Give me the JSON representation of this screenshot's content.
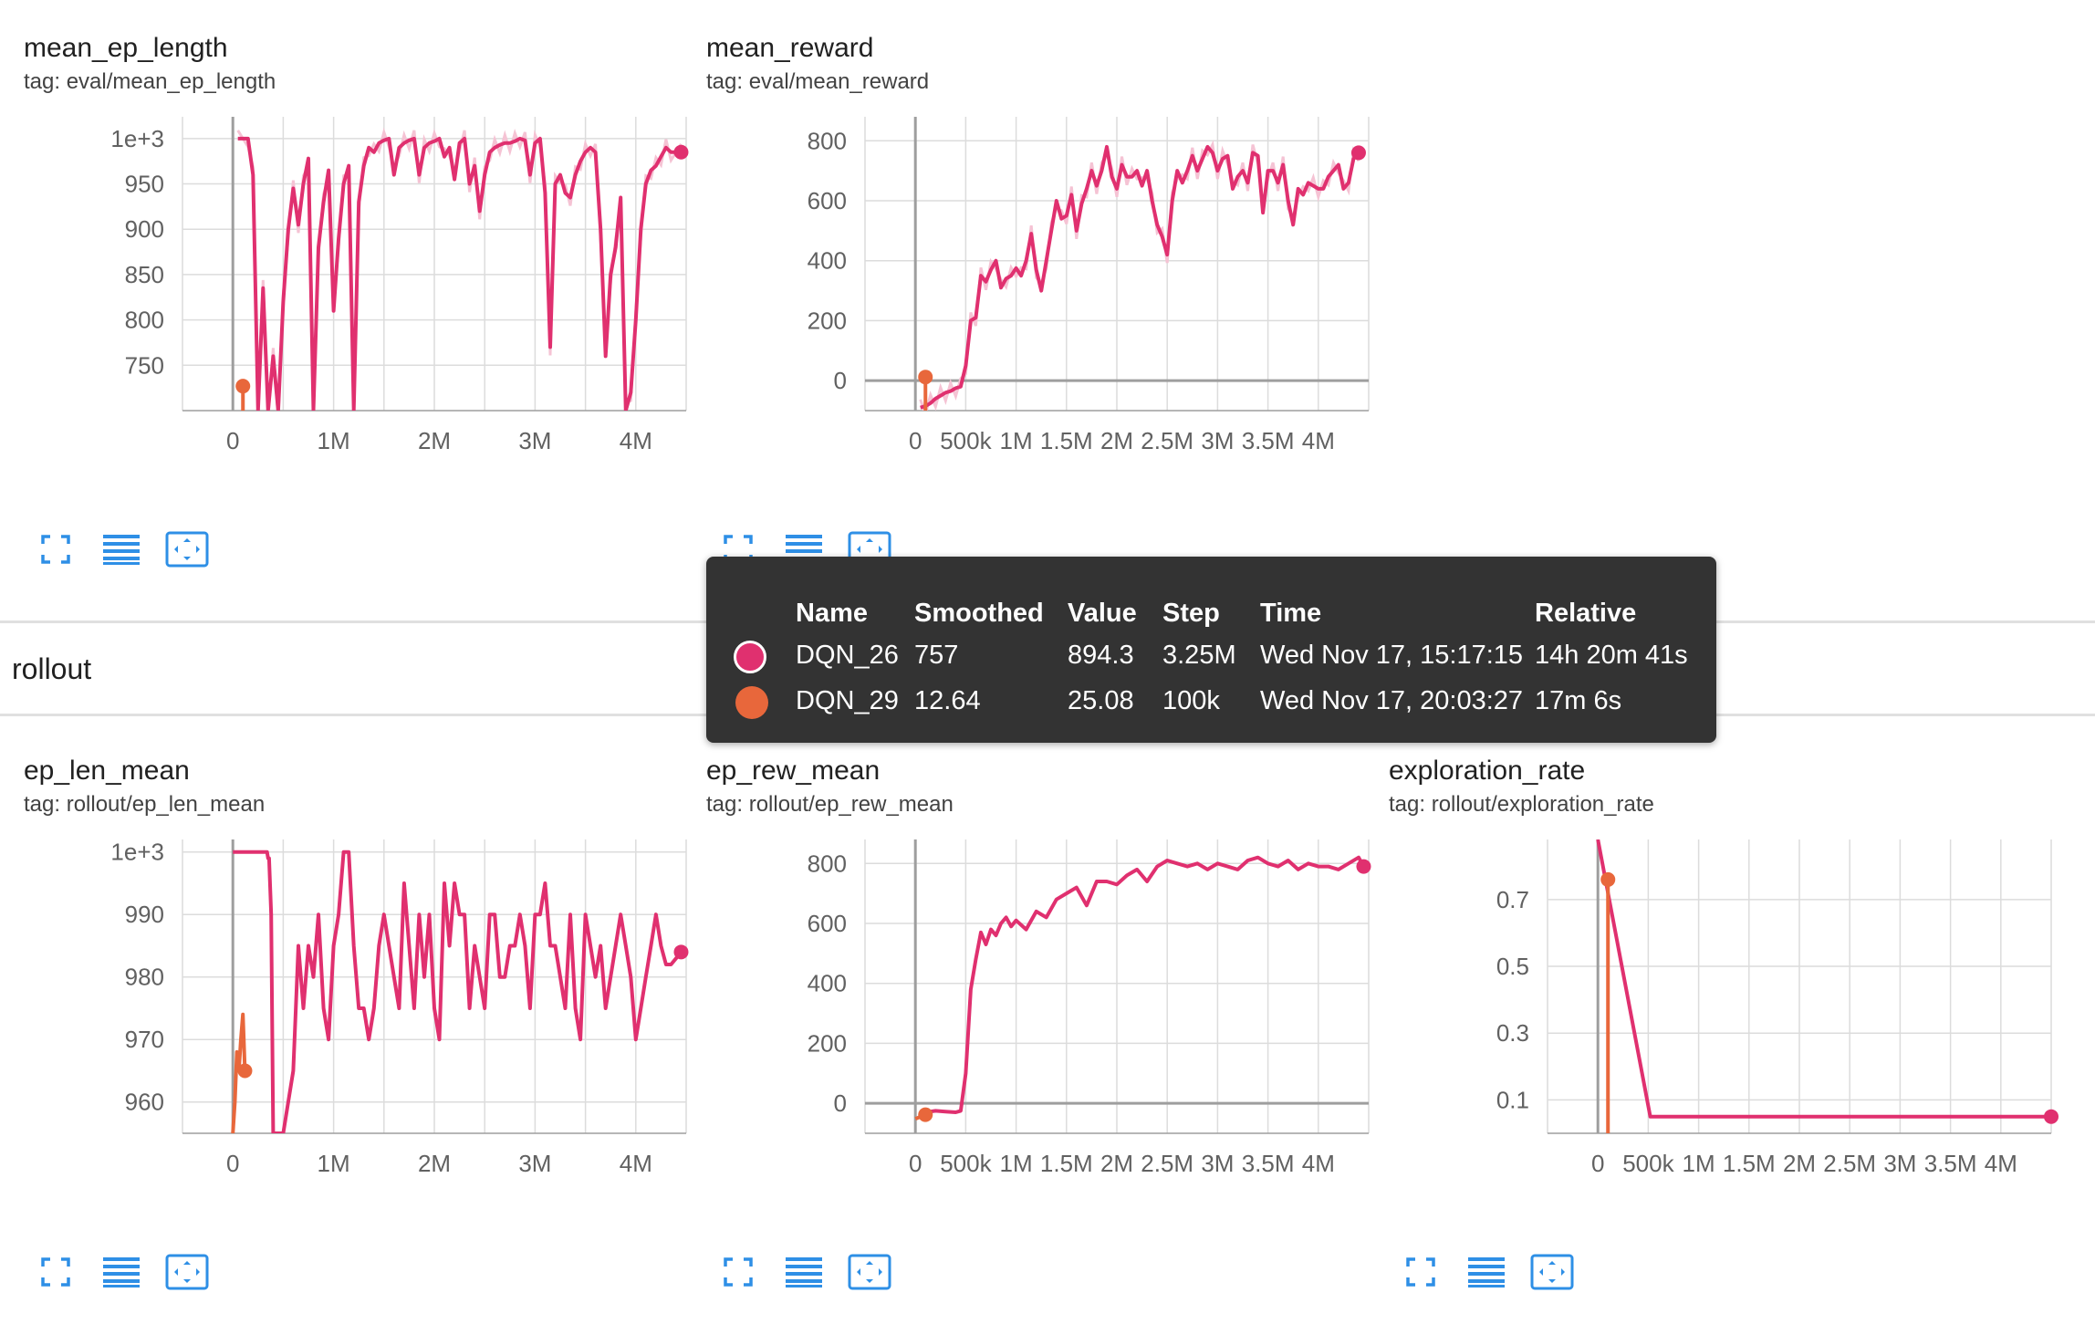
{
  "group": {
    "title": "rollout"
  },
  "colors": {
    "run1": "#e0306f",
    "run1_light": "#f5c3d4",
    "run2": "#e8673b",
    "axis": "#9e9e9e",
    "grid": "#dcdcdc",
    "icon": "#2e8fe6"
  },
  "tooltip": {
    "headers": [
      "Name",
      "Smoothed",
      "Value",
      "Step",
      "Time",
      "Relative"
    ],
    "rows": [
      {
        "name": "DQN_26",
        "smoothed": "757",
        "value": "894.3",
        "step": "3.25M",
        "time": "Wed Nov 17, 15:17:15",
        "relative": "14h 20m 41s",
        "color": "#e0306f"
      },
      {
        "name": "DQN_29",
        "smoothed": "12.64",
        "value": "25.08",
        "step": "100k",
        "time": "Wed Nov 17, 20:03:27",
        "relative": "17m 6s",
        "color": "#e8673b"
      }
    ]
  },
  "cards": [
    {
      "title": "mean_ep_length",
      "tag": "tag: eval/mean_ep_length"
    },
    {
      "title": "mean_reward",
      "tag": "tag: eval/mean_reward"
    },
    {
      "title": "ep_len_mean",
      "tag": "tag: rollout/ep_len_mean"
    },
    {
      "title": "ep_rew_mean",
      "tag": "tag: rollout/ep_rew_mean"
    },
    {
      "title": "exploration_rate",
      "tag": "tag: rollout/exploration_rate"
    }
  ],
  "icons": [
    "fullscreen-icon",
    "data-table-icon",
    "fit-domain-icon"
  ],
  "chart_data": [
    {
      "type": "line",
      "title": "mean_ep_length",
      "xlim": [
        -500000,
        4500000
      ],
      "ylim": [
        700,
        1024
      ],
      "xticks": [
        0,
        1000000,
        2000000,
        3000000,
        4000000
      ],
      "xtick_labels": [
        "0",
        "1M",
        "2M",
        "3M",
        "4M"
      ],
      "yticks": [
        750,
        800,
        850,
        900,
        950,
        1000
      ],
      "ytick_labels": [
        "750",
        "800",
        "850",
        "900",
        "950",
        "1e+3"
      ],
      "series": [
        {
          "name": "DQN_26",
          "x": [
            50000,
            150000,
            200000,
            250000,
            300000,
            350000,
            400000,
            450000,
            500000,
            550000,
            600000,
            650000,
            700000,
            750000,
            800000,
            850000,
            900000,
            950000,
            1000000,
            1050000,
            1100000,
            1150000,
            1200000,
            1250000,
            1300000,
            1350000,
            1400000,
            1450000,
            1500000,
            1550000,
            1600000,
            1650000,
            1700000,
            1750000,
            1800000,
            1850000,
            1900000,
            1950000,
            2000000,
            2050000,
            2100000,
            2150000,
            2200000,
            2250000,
            2300000,
            2350000,
            2400000,
            2450000,
            2500000,
            2550000,
            2600000,
            2650000,
            2700000,
            2750000,
            2800000,
            2850000,
            2900000,
            2950000,
            3000000,
            3050000,
            3100000,
            3150000,
            3200000,
            3250000,
            3300000,
            3350000,
            3400000,
            3450000,
            3500000,
            3550000,
            3600000,
            3650000,
            3700000,
            3750000,
            3800000,
            3850000,
            3900000,
            3950000,
            4000000,
            4050000,
            4100000,
            4150000,
            4200000,
            4250000,
            4300000,
            4350000,
            4450000
          ],
          "y": [
            1000,
            1000,
            960,
            700,
            835,
            700,
            760,
            700,
            820,
            900,
            945,
            905,
            950,
            978,
            700,
            880,
            930,
            965,
            810,
            890,
            950,
            970,
            700,
            930,
            970,
            990,
            985,
            995,
            998,
            1000,
            960,
            990,
            995,
            998,
            1000,
            960,
            990,
            995,
            997,
            1000,
            980,
            990,
            955,
            995,
            1000,
            950,
            970,
            920,
            960,
            985,
            990,
            993,
            995,
            995,
            997,
            1000,
            998,
            960,
            995,
            1000,
            940,
            770,
            950,
            960,
            940,
            935,
            960,
            975,
            985,
            990,
            985,
            900,
            760,
            850,
            880,
            935,
            700,
            720,
            800,
            900,
            950,
            965,
            970,
            980,
            990,
            985,
            985
          ]
        },
        {
          "name": "DQN_29",
          "x": [
            100000
          ],
          "y": [
            727
          ]
        }
      ]
    },
    {
      "type": "line",
      "title": "mean_reward",
      "xlim": [
        -500000,
        4500000
      ],
      "ylim": [
        -100,
        880
      ],
      "xticks": [
        0,
        500000,
        1000000,
        1500000,
        2000000,
        2500000,
        3000000,
        3500000,
        4000000
      ],
      "xtick_labels": [
        "0",
        "500k",
        "1M",
        "1.5M",
        "2M",
        "2.5M",
        "3M",
        "3.5M",
        "4M"
      ],
      "yticks": [
        0,
        200,
        400,
        600,
        800
      ],
      "ytick_labels": [
        "0",
        "200",
        "400",
        "600",
        "800"
      ],
      "series": [
        {
          "name": "DQN_26",
          "x": [
            50000,
            100000,
            150000,
            200000,
            250000,
            300000,
            350000,
            400000,
            450000,
            500000,
            550000,
            600000,
            650000,
            700000,
            750000,
            800000,
            850000,
            900000,
            950000,
            1000000,
            1050000,
            1100000,
            1150000,
            1200000,
            1250000,
            1300000,
            1350000,
            1400000,
            1450000,
            1500000,
            1550000,
            1600000,
            1650000,
            1700000,
            1750000,
            1800000,
            1850000,
            1900000,
            1950000,
            2000000,
            2050000,
            2100000,
            2150000,
            2200000,
            2250000,
            2300000,
            2350000,
            2400000,
            2450000,
            2500000,
            2550000,
            2600000,
            2650000,
            2700000,
            2750000,
            2800000,
            2850000,
            2900000,
            2950000,
            3000000,
            3050000,
            3100000,
            3150000,
            3200000,
            3250000,
            3300000,
            3350000,
            3400000,
            3450000,
            3500000,
            3550000,
            3600000,
            3650000,
            3700000,
            3750000,
            3800000,
            3850000,
            3900000,
            3950000,
            4000000,
            4050000,
            4100000,
            4150000,
            4200000,
            4250000,
            4300000,
            4350000,
            4400000
          ],
          "y": [
            -90,
            -85,
            -75,
            -60,
            -50,
            -40,
            -35,
            -25,
            -20,
            50,
            200,
            210,
            350,
            330,
            370,
            400,
            310,
            340,
            350,
            375,
            350,
            400,
            490,
            370,
            300,
            400,
            500,
            600,
            540,
            550,
            620,
            500,
            590,
            640,
            700,
            650,
            700,
            780,
            680,
            640,
            720,
            680,
            680,
            700,
            650,
            700,
            600,
            520,
            480,
            420,
            600,
            700,
            660,
            700,
            750,
            700,
            740,
            780,
            760,
            700,
            740,
            750,
            640,
            680,
            700,
            660,
            760,
            750,
            560,
            700,
            700,
            660,
            720,
            600,
            520,
            640,
            620,
            660,
            650,
            640,
            640,
            680,
            700,
            720,
            640,
            660,
            740,
            760
          ]
        },
        {
          "name": "DQN_29",
          "x": [
            100000
          ],
          "y": [
            12
          ]
        }
      ]
    },
    {
      "type": "line",
      "title": "ep_len_mean",
      "xlim": [
        -500000,
        4500000
      ],
      "ylim": [
        955,
        1002
      ],
      "xticks": [
        0,
        1000000,
        2000000,
        3000000,
        4000000
      ],
      "xtick_labels": [
        "0",
        "1M",
        "2M",
        "3M",
        "4M"
      ],
      "yticks": [
        960,
        970,
        980,
        990,
        1000
      ],
      "ytick_labels": [
        "960",
        "970",
        "980",
        "990",
        "1e+3"
      ],
      "series": [
        {
          "name": "DQN_26",
          "x": [
            0,
            50000,
            100000,
            150000,
            200000,
            250000,
            300000,
            340000,
            350000,
            360000,
            380000,
            400000,
            450000,
            500000,
            550000,
            600000,
            650000,
            700000,
            750000,
            800000,
            850000,
            900000,
            950000,
            1000000,
            1050000,
            1100000,
            1150000,
            1200000,
            1250000,
            1300000,
            1350000,
            1400000,
            1450000,
            1500000,
            1550000,
            1600000,
            1650000,
            1700000,
            1750000,
            1800000,
            1850000,
            1900000,
            1950000,
            2000000,
            2050000,
            2100000,
            2150000,
            2200000,
            2250000,
            2300000,
            2350000,
            2400000,
            2450000,
            2500000,
            2550000,
            2600000,
            2650000,
            2700000,
            2750000,
            2800000,
            2850000,
            2900000,
            2950000,
            3000000,
            3050000,
            3100000,
            3150000,
            3200000,
            3250000,
            3300000,
            3350000,
            3400000,
            3450000,
            3500000,
            3550000,
            3600000,
            3650000,
            3700000,
            3750000,
            3800000,
            3850000,
            3900000,
            3950000,
            4000000,
            4050000,
            4100000,
            4150000,
            4200000,
            4250000,
            4300000,
            4350000,
            4400000,
            4450000
          ],
          "y": [
            1000,
            1000,
            1000,
            1000,
            1000,
            1000,
            1000,
            1000,
            999,
            999,
            990,
            955,
            955,
            955,
            960,
            965,
            985,
            975,
            985,
            980,
            990,
            975,
            970,
            985,
            990,
            1000,
            1000,
            985,
            975,
            975,
            970,
            975,
            985,
            990,
            985,
            980,
            975,
            995,
            985,
            975,
            990,
            980,
            990,
            975,
            970,
            995,
            985,
            995,
            990,
            990,
            975,
            985,
            980,
            975,
            990,
            990,
            980,
            980,
            985,
            985,
            990,
            985,
            975,
            990,
            990,
            995,
            985,
            985,
            980,
            975,
            990,
            975,
            970,
            990,
            985,
            980,
            985,
            975,
            980,
            985,
            990,
            985,
            980,
            970,
            975,
            980,
            985,
            990,
            985,
            982,
            982,
            983,
            984
          ]
        },
        {
          "name": "DQN_29",
          "x": [
            0,
            20000,
            40000,
            60000,
            80000,
            100000,
            120000
          ],
          "y": [
            955,
            960,
            968,
            965,
            970,
            974,
            965
          ]
        }
      ]
    },
    {
      "type": "line",
      "title": "ep_rew_mean",
      "xlim": [
        -500000,
        4500000
      ],
      "ylim": [
        -100,
        880
      ],
      "xticks": [
        0,
        500000,
        1000000,
        1500000,
        2000000,
        2500000,
        3000000,
        3500000,
        4000000
      ],
      "xtick_labels": [
        "0",
        "500k",
        "1M",
        "1.5M",
        "2M",
        "2.5M",
        "3M",
        "3.5M",
        "4M"
      ],
      "yticks": [
        0,
        200,
        400,
        600,
        800
      ],
      "ytick_labels": [
        "0",
        "200",
        "400",
        "600",
        "800"
      ],
      "series": [
        {
          "name": "DQN_26",
          "x": [
            100000,
            200000,
            300000,
            400000,
            450000,
            500000,
            550000,
            600000,
            650000,
            700000,
            750000,
            800000,
            850000,
            900000,
            950000,
            1000000,
            1100000,
            1200000,
            1300000,
            1400000,
            1500000,
            1600000,
            1700000,
            1800000,
            1900000,
            2000000,
            2100000,
            2200000,
            2300000,
            2400000,
            2500000,
            2600000,
            2700000,
            2800000,
            2900000,
            3000000,
            3100000,
            3200000,
            3300000,
            3400000,
            3500000,
            3600000,
            3700000,
            3800000,
            3900000,
            4000000,
            4100000,
            4200000,
            4300000,
            4400000,
            4450000
          ],
          "y": [
            -30,
            -25,
            -28,
            -30,
            -25,
            100,
            380,
            480,
            570,
            530,
            580,
            560,
            600,
            620,
            590,
            610,
            580,
            640,
            620,
            680,
            700,
            720,
            660,
            740,
            740,
            730,
            760,
            780,
            740,
            790,
            810,
            800,
            790,
            800,
            780,
            800,
            790,
            780,
            810,
            820,
            800,
            790,
            810,
            780,
            800,
            790,
            790,
            780,
            800,
            820,
            790
          ]
        },
        {
          "name": "DQN_29",
          "x": [
            0,
            50000,
            100000
          ],
          "y": [
            -52,
            -45,
            -38
          ]
        }
      ]
    },
    {
      "type": "line",
      "title": "exploration_rate",
      "xlim": [
        -500000,
        4500000
      ],
      "ylim": [
        0,
        0.88
      ],
      "xticks": [
        0,
        500000,
        1000000,
        1500000,
        2000000,
        2500000,
        3000000,
        3500000,
        4000000
      ],
      "xtick_labels": [
        "0",
        "500k",
        "1M",
        "1.5M",
        "2M",
        "2.5M",
        "3M",
        "3.5M",
        "4M"
      ],
      "yticks": [
        0.1,
        0.3,
        0.5,
        0.7
      ],
      "ytick_labels": [
        "0.1",
        "0.3",
        "0.5",
        "0.7"
      ],
      "series": [
        {
          "name": "DQN_26",
          "x": [
            0,
            520000,
            4500000
          ],
          "y": [
            0.88,
            0.05,
            0.05
          ]
        },
        {
          "name": "DQN_29",
          "x": [
            100000
          ],
          "y": [
            0.76
          ]
        }
      ]
    }
  ]
}
